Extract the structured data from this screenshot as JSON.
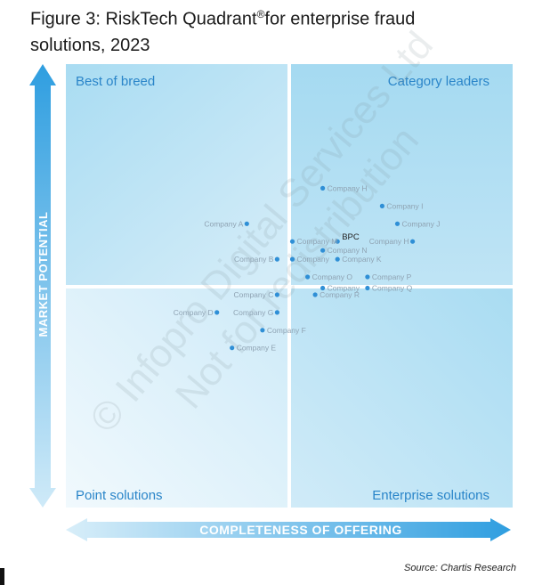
{
  "title": {
    "main": "Figure 3: RiskTech Quadrant",
    "sup": "®",
    "rest": "for enterprise fraud solutions, 2023"
  },
  "watermark": {
    "line1": "© Infopro Digital Services Ltd",
    "line2": "Not for redistribution"
  },
  "source": "Source: Chartis Research",
  "colors": {
    "quadrant_dark": "#a9dcf2",
    "quadrant_light": "#eaf6fc",
    "point": "#2f8fd6",
    "label": "#8fa3b3",
    "highlight_label": "#222222",
    "quadrant_title": "#2a85c9",
    "arrow": "#3fa6dd"
  },
  "chart_data": {
    "type": "scatter",
    "title": "RiskTech Quadrant® for enterprise fraud solutions, 2023",
    "xlabel": "COMPLETENESS OF OFFERING",
    "ylabel": "MARKET POTENTIAL",
    "xlim": [
      0,
      100
    ],
    "ylim": [
      0,
      100
    ],
    "grid": false,
    "quadrants": {
      "top_left": "Best of breed",
      "top_right": "Category leaders",
      "bottom_left": "Point solutions",
      "bottom_right": "Enterprise solutions"
    },
    "points": [
      {
        "name": "Company H",
        "x": 57.5,
        "y": 72.0,
        "highlight": false
      },
      {
        "name": "Company I",
        "x": 70.8,
        "y": 68.0,
        "highlight": false
      },
      {
        "name": "Company A",
        "x": 40.5,
        "y": 64.0,
        "highlight": false
      },
      {
        "name": "Company J",
        "x": 74.2,
        "y": 64.0,
        "highlight": false
      },
      {
        "name": "BPC",
        "x": 60.8,
        "y": 60.0,
        "highlight": true
      },
      {
        "name": "Company M",
        "x": 50.7,
        "y": 60.0,
        "highlight": false
      },
      {
        "name": "Company H",
        "x": 77.6,
        "y": 60.0,
        "highlight": false
      },
      {
        "name": "Company N",
        "x": 57.5,
        "y": 58.0,
        "highlight": false
      },
      {
        "name": "Company B",
        "x": 47.3,
        "y": 56.0,
        "highlight": false
      },
      {
        "name": "Company",
        "x": 50.7,
        "y": 56.0,
        "highlight": false
      },
      {
        "name": "Company K",
        "x": 60.8,
        "y": 56.0,
        "highlight": false
      },
      {
        "name": "Company O",
        "x": 54.1,
        "y": 52.0,
        "highlight": false
      },
      {
        "name": "Company P",
        "x": 67.5,
        "y": 52.0,
        "highlight": false
      },
      {
        "name": "Company",
        "x": 57.5,
        "y": 49.5,
        "highlight": false
      },
      {
        "name": "Company Q",
        "x": 67.5,
        "y": 49.5,
        "highlight": false
      },
      {
        "name": "Company R",
        "x": 55.8,
        "y": 48.0,
        "highlight": false
      },
      {
        "name": "Company C",
        "x": 47.3,
        "y": 48.0,
        "highlight": false
      },
      {
        "name": "Company D",
        "x": 33.8,
        "y": 44.0,
        "highlight": false
      },
      {
        "name": "Company G",
        "x": 47.3,
        "y": 44.0,
        "highlight": false
      },
      {
        "name": "Company F",
        "x": 44.0,
        "y": 40.0,
        "highlight": false
      },
      {
        "name": "Company E",
        "x": 37.2,
        "y": 36.0,
        "highlight": false
      }
    ]
  }
}
